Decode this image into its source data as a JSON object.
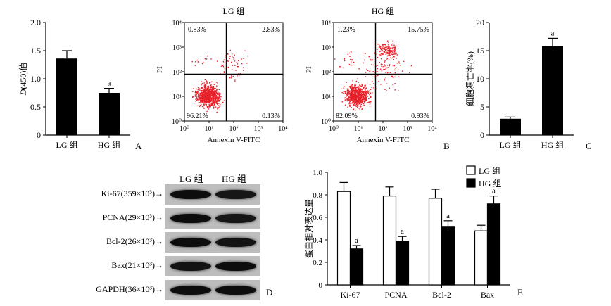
{
  "panel_letters": {
    "A": "A",
    "B": "B",
    "C": "C",
    "D": "D",
    "E": "E"
  },
  "chart_data": [
    {
      "id": "A",
      "type": "bar",
      "categories": [
        "LG 组",
        "HG 组"
      ],
      "values": [
        1.36,
        0.75
      ],
      "errors": [
        0.14,
        0.08
      ],
      "annotations": [
        "",
        "a"
      ],
      "ylabel_italic": "D",
      "ylabel_rest": "(450)值",
      "ylim": [
        0,
        2.0
      ],
      "yticks": [
        "0",
        "0.5",
        "1.0",
        "1.5",
        "2.0"
      ],
      "bar_color": "#000000"
    },
    {
      "id": "C",
      "type": "bar",
      "categories": [
        "LG 组",
        "HG 组"
      ],
      "values": [
        2.9,
        15.8
      ],
      "errors": [
        0.3,
        1.4
      ],
      "annotations": [
        "",
        "a"
      ],
      "ylabel": "细胞凋亡率(%)",
      "ylim": [
        0,
        20
      ],
      "yticks": [
        "0",
        "5",
        "10",
        "15",
        "20"
      ],
      "bar_color": "#000000"
    },
    {
      "id": "E",
      "type": "bar",
      "categories": [
        "Ki-67",
        "PCNA",
        "Bcl-2",
        "Bax"
      ],
      "series": [
        {
          "name": "LG 组",
          "values": [
            0.83,
            0.79,
            0.77,
            0.48
          ],
          "errors": [
            0.08,
            0.08,
            0.08,
            0.05
          ],
          "fill": "#ffffff"
        },
        {
          "name": "HG 组",
          "values": [
            0.32,
            0.39,
            0.52,
            0.72
          ],
          "errors": [
            0.03,
            0.04,
            0.05,
            0.07
          ],
          "fill": "#000000"
        }
      ],
      "annotations_hg": [
        "a",
        "a",
        "a",
        "a"
      ],
      "ylabel": "蛋白相对表达量",
      "ylim": [
        0,
        1.0
      ],
      "yticks": [
        "0",
        "0.2",
        "0.4",
        "0.6",
        "0.8",
        "1.0"
      ],
      "legend": "top-right"
    }
  ],
  "flow": {
    "xlabel": "Annexin V-FITC",
    "ylabel": "PI",
    "tick_labels": [
      "10⁰",
      "10¹",
      "10²",
      "10³",
      "10⁴"
    ],
    "dot_color": "#e8202a",
    "plots": [
      {
        "title": "LG 组",
        "ul": "0.83%",
        "ur": "2.83%",
        "ll": "96.21%",
        "lr": "0.13%"
      },
      {
        "title": "HG 组",
        "ul": "1.23%",
        "ur": "15.75%",
        "ll": "82.09%",
        "lr": "0.93%"
      }
    ]
  },
  "blot": {
    "header_lg": "LG 组",
    "header_hg": "HG 组",
    "rows": [
      {
        "label": "Ki-67(359×10³)→",
        "lg": 0.95,
        "hg": 0.8
      },
      {
        "label": "PCNA(29×10³)→",
        "lg": 0.95,
        "hg": 0.8
      },
      {
        "label": "Bcl-2(26×10³)→",
        "lg": 0.95,
        "hg": 0.85
      },
      {
        "label": "Bax(21×10³)→",
        "lg": 0.85,
        "hg": 0.95
      },
      {
        "label": "GAPDH(36×10³)→",
        "lg": 0.95,
        "hg": 0.95
      }
    ]
  }
}
